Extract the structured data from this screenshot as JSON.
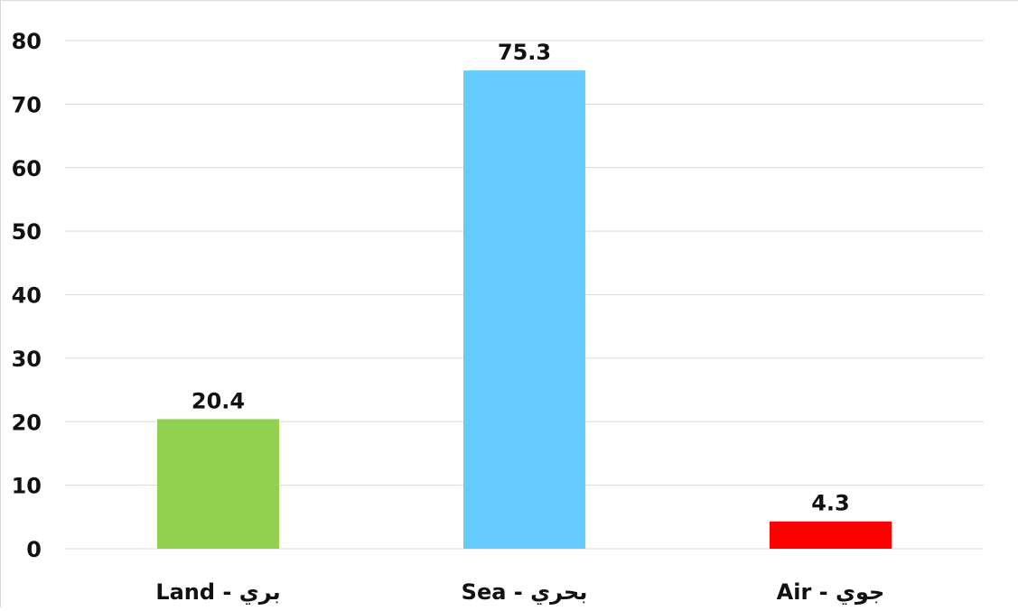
{
  "chart_data": {
    "type": "bar",
    "title": "",
    "xlabel": "",
    "ylabel": "",
    "categories": [
      "Land - بري",
      "Sea - بحري",
      "Air - جوي"
    ],
    "values": [
      20.4,
      75.3,
      4.3
    ],
    "data_labels": [
      "20.4",
      "75.3",
      "4.3"
    ],
    "bar_colors": [
      "#92d050",
      "#66ccff",
      "#ff0000"
    ],
    "ylim": [
      0,
      80
    ],
    "yticks": [
      0,
      10,
      20,
      30,
      40,
      50,
      60,
      70,
      80
    ],
    "ytick_labels": [
      "0",
      "10",
      "20",
      "30",
      "40",
      "50",
      "60",
      "70",
      "80"
    ],
    "grid": true,
    "legend": "none"
  }
}
